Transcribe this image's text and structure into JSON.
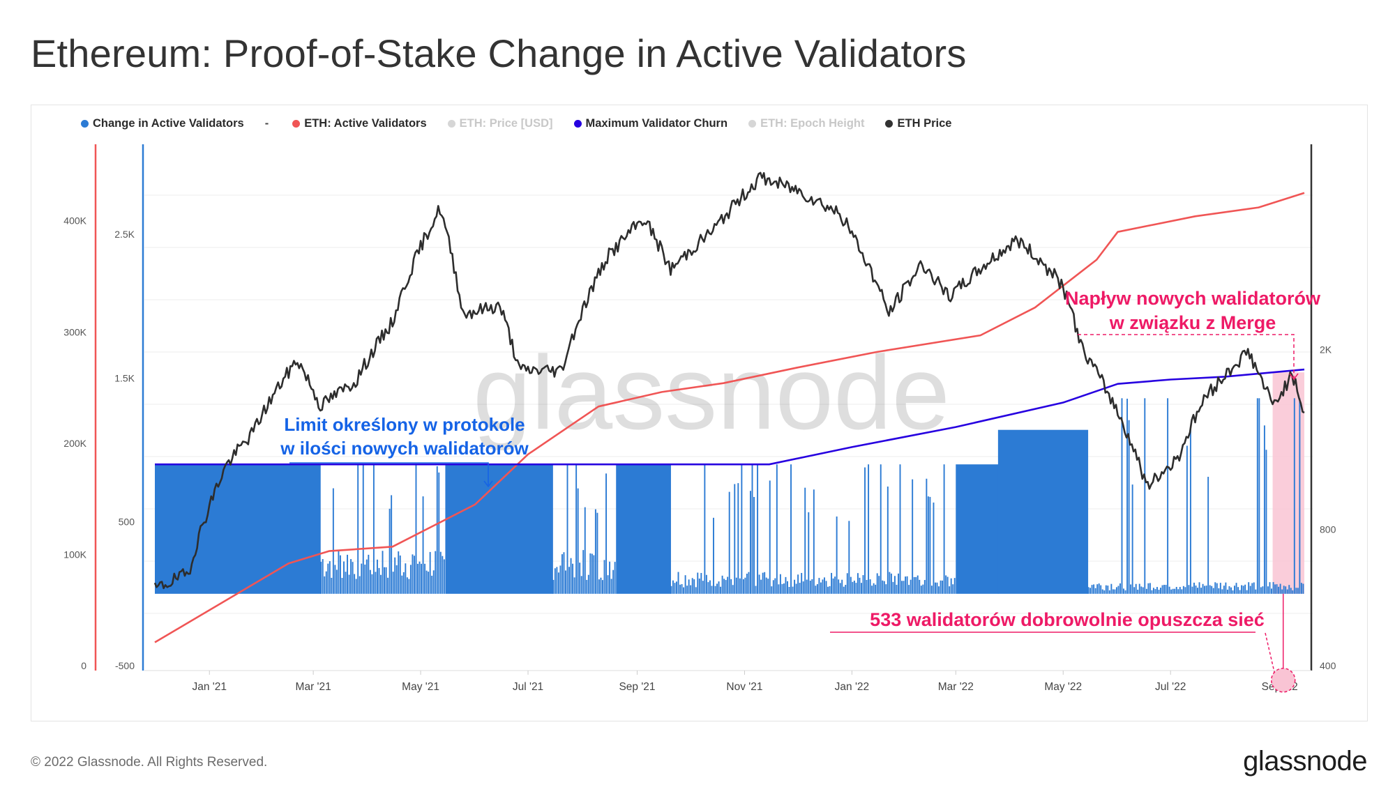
{
  "title": "Ethereum: Proof-of-Stake Change in Active Validators",
  "legend": [
    {
      "label": "Change in Active Validators",
      "color": "#2c7bd4",
      "muted": false
    },
    {
      "label": "-",
      "color": "",
      "muted": false,
      "dash": true
    },
    {
      "label": "ETH: Active Validators",
      "color": "#f05555",
      "muted": false
    },
    {
      "label": "ETH: Price [USD]",
      "color": "#555555",
      "muted": true
    },
    {
      "label": "Maximum Validator Churn",
      "color": "#2600e0",
      "muted": false
    },
    {
      "label": "ETH: Epoch Height",
      "color": "#9b59d6",
      "muted": true
    },
    {
      "label": "ETH Price",
      "color": "#333333",
      "muted": false
    }
  ],
  "footer": "© 2022 Glassnode. All Rights Reserved.",
  "brand": "glassnode",
  "watermark": "glassnode",
  "annotations": {
    "limit": [
      "Limit określony w protokole",
      "w ilości nowych walidatorów"
    ],
    "inflow": [
      "Napływ nowych walidatorów",
      "w związku z Merge"
    ],
    "exit": "533 walidatorów dobrowolnie opuszcza sieć"
  },
  "colors": {
    "bars": "#2c7bd4",
    "active_validators": "#f05555",
    "churn": "#2600e0",
    "price": "#2d2d2d",
    "annotation_blue": "#1563e6",
    "annotation_pink": "#ee1a66",
    "highlight": "#f9c4d4",
    "axis_red": "#f05555",
    "axis_blue": "#2c7bd4",
    "axis_dark": "#333333"
  },
  "chart_data": {
    "type": "bar+line",
    "x_ticks": [
      "Jan '21",
      "Mar '21",
      "May '21",
      "Jul '21",
      "Sep '21",
      "Nov '21",
      "Jan '22",
      "Mar '22",
      "May '22",
      "Jul '22",
      "Sep '22"
    ],
    "x_range": [
      "2020-12-01",
      "2022-09-15"
    ],
    "axes": {
      "active_validators": {
        "ticks": [
          "0",
          "100K",
          "200K",
          "300K",
          "400K"
        ],
        "range": [
          0,
          470000
        ]
      },
      "change": {
        "ticks": [
          "-500",
          "500",
          "1.5K",
          "2.5K"
        ],
        "range": [
          -500,
          3000
        ]
      },
      "price": {
        "ticks": [
          "400",
          "800",
          "2K"
        ],
        "scale": "log",
        "range": [
          400,
          5200
        ]
      }
    },
    "series": [
      {
        "name": "ETH: Active Validators",
        "points": [
          [
            "2020-12-01",
            21000
          ],
          [
            "2021-02-15",
            92000
          ],
          [
            "2021-03-10",
            103000
          ],
          [
            "2021-04-15",
            107000
          ],
          [
            "2021-06-01",
            145000
          ],
          [
            "2021-07-01",
            190000
          ],
          [
            "2021-08-10",
            233000
          ],
          [
            "2021-09-15",
            246000
          ],
          [
            "2021-10-20",
            254000
          ],
          [
            "2021-12-01",
            268000
          ],
          [
            "2022-01-15",
            282000
          ],
          [
            "2022-03-15",
            297000
          ],
          [
            "2022-04-15",
            322000
          ],
          [
            "2022-05-20",
            365000
          ],
          [
            "2022-06-01",
            390000
          ],
          [
            "2022-07-15",
            404000
          ],
          [
            "2022-08-20",
            412000
          ],
          [
            "2022-09-15",
            425000
          ]
        ]
      },
      {
        "name": "Maximum Validator Churn",
        "points": [
          [
            "2020-12-01",
            900
          ],
          [
            "2021-10-01",
            900
          ],
          [
            "2021-11-15",
            900
          ],
          [
            "2022-01-01",
            1020
          ],
          [
            "2022-03-01",
            1160
          ],
          [
            "2022-05-01",
            1330
          ],
          [
            "2022-06-01",
            1460
          ],
          [
            "2022-07-01",
            1490
          ],
          [
            "2022-08-01",
            1510
          ],
          [
            "2022-09-15",
            1560
          ]
        ]
      },
      {
        "name": "Change in Active Validators",
        "segments": [
          {
            "from": "2020-12-01",
            "to": "2021-03-05",
            "level": 900
          },
          {
            "from": "2021-03-05",
            "to": "2021-05-15",
            "level": 300,
            "spikes_to": 900
          },
          {
            "from": "2021-05-15",
            "to": "2021-07-15",
            "level": 900
          },
          {
            "from": "2021-07-15",
            "to": "2021-08-20",
            "level": 300,
            "spikes_to": 900
          },
          {
            "from": "2021-08-20",
            "to": "2021-09-20",
            "level": 900
          },
          {
            "from": "2021-09-20",
            "to": "2022-03-01",
            "level": 150,
            "spikes_to": 900
          },
          {
            "from": "2022-03-01",
            "to": "2022-03-25",
            "level": 900
          },
          {
            "from": "2022-03-25",
            "to": "2022-05-15",
            "level": 1140
          },
          {
            "from": "2022-05-15",
            "to": "2022-09-15",
            "level": 80,
            "spikes_to": 1360
          }
        ]
      },
      {
        "name": "ETH Price",
        "points": [
          [
            "2020-12-01",
            590
          ],
          [
            "2020-12-20",
            640
          ],
          [
            "2021-01-10",
            1100
          ],
          [
            "2021-01-25",
            1300
          ],
          [
            "2021-02-20",
            1900
          ],
          [
            "2021-03-05",
            1500
          ],
          [
            "2021-03-25",
            1700
          ],
          [
            "2021-04-15",
            2300
          ],
          [
            "2021-05-12",
            4100
          ],
          [
            "2021-05-25",
            2400
          ],
          [
            "2021-06-15",
            2500
          ],
          [
            "2021-06-26",
            1800
          ],
          [
            "2021-07-20",
            1800
          ],
          [
            "2021-08-15",
            3200
          ],
          [
            "2021-09-05",
            3900
          ],
          [
            "2021-09-20",
            3000
          ],
          [
            "2021-10-15",
            3700
          ],
          [
            "2021-11-10",
            4800
          ],
          [
            "2021-12-01",
            4500
          ],
          [
            "2021-12-25",
            4000
          ],
          [
            "2022-01-22",
            2400
          ],
          [
            "2022-02-10",
            3100
          ],
          [
            "2022-02-25",
            2600
          ],
          [
            "2022-04-05",
            3500
          ],
          [
            "2022-04-30",
            2800
          ],
          [
            "2022-05-12",
            2000
          ],
          [
            "2022-06-18",
            990
          ],
          [
            "2022-07-05",
            1150
          ],
          [
            "2022-07-20",
            1550
          ],
          [
            "2022-08-14",
            1980
          ],
          [
            "2022-08-28",
            1500
          ],
          [
            "2022-09-08",
            1750
          ],
          [
            "2022-09-15",
            1450
          ]
        ]
      }
    ],
    "exit_event": {
      "date": "2022-09-03",
      "value": -533
    }
  }
}
